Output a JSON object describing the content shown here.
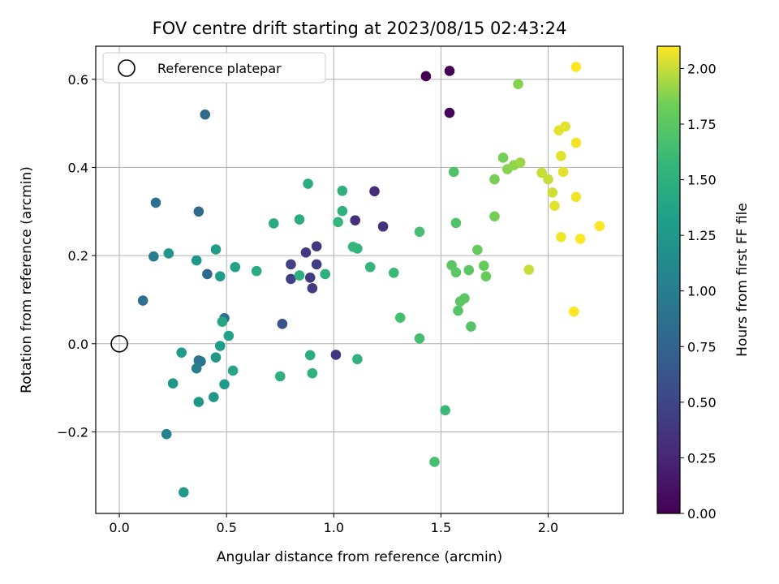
{
  "chart_data": {
    "type": "scatter",
    "title": "FOV centre drift starting at 2023/08/15 02:43:24",
    "xlabel": "Angular distance from reference (arcmin)",
    "ylabel": "Rotation from reference (arcmin)",
    "xlim": [
      -0.11,
      2.35
    ],
    "ylim": [
      -0.385,
      0.675
    ],
    "xticks": [
      0.0,
      0.5,
      1.0,
      1.5,
      2.0
    ],
    "xtick_labels": [
      "0.0",
      "0.5",
      "1.0",
      "1.5",
      "2.0"
    ],
    "yticks": [
      -0.2,
      0.0,
      0.2,
      0.4,
      0.6
    ],
    "ytick_labels": [
      "−0.2",
      "0.0",
      "0.2",
      "0.4",
      "0.6"
    ],
    "grid": true,
    "legend": {
      "placement": "top-left",
      "entries": [
        "Reference platepar"
      ]
    },
    "reference_point": {
      "x": 0.0,
      "y": 0.0
    },
    "colorbar": {
      "label": "Hours from first FF file",
      "min": 0.0,
      "max": 2.1,
      "colormap": "viridis",
      "ticks": [
        0.0,
        0.25,
        0.5,
        0.75,
        1.0,
        1.25,
        1.5,
        1.75,
        2.0
      ],
      "tick_labels": [
        "0.00",
        "0.25",
        "0.50",
        "0.75",
        "1.00",
        "1.25",
        "1.50",
        "1.75",
        "2.00"
      ]
    },
    "points": [
      {
        "x": 1.43,
        "y": 0.607,
        "c": 0.0
      },
      {
        "x": 1.54,
        "y": 0.619,
        "c": 0.0
      },
      {
        "x": 1.54,
        "y": 0.524,
        "c": 0.02
      },
      {
        "x": 1.19,
        "y": 0.346,
        "c": 0.3
      },
      {
        "x": 1.1,
        "y": 0.28,
        "c": 0.32
      },
      {
        "x": 1.23,
        "y": 0.266,
        "c": 0.34
      },
      {
        "x": 0.92,
        "y": 0.221,
        "c": 0.38
      },
      {
        "x": 0.87,
        "y": 0.207,
        "c": 0.4
      },
      {
        "x": 0.92,
        "y": 0.18,
        "c": 0.42
      },
      {
        "x": 0.8,
        "y": 0.18,
        "c": 0.45
      },
      {
        "x": 0.8,
        "y": 0.147,
        "c": 0.45
      },
      {
        "x": 0.89,
        "y": 0.15,
        "c": 0.4
      },
      {
        "x": 0.9,
        "y": 0.126,
        "c": 0.42
      },
      {
        "x": 1.01,
        "y": -0.025,
        "c": 0.38
      },
      {
        "x": 0.76,
        "y": 0.045,
        "c": 0.62
      },
      {
        "x": 0.4,
        "y": 0.52,
        "c": 0.82
      },
      {
        "x": 0.37,
        "y": 0.3,
        "c": 0.82
      },
      {
        "x": 0.17,
        "y": 0.32,
        "c": 0.85
      },
      {
        "x": 0.41,
        "y": 0.158,
        "c": 0.8
      },
      {
        "x": 0.49,
        "y": 0.058,
        "c": 0.85
      },
      {
        "x": 0.11,
        "y": 0.098,
        "c": 0.88
      },
      {
        "x": 0.16,
        "y": 0.198,
        "c": 0.98
      },
      {
        "x": 0.37,
        "y": -0.038,
        "c": 0.9
      },
      {
        "x": 0.38,
        "y": -0.04,
        "c": 0.92
      },
      {
        "x": 0.36,
        "y": -0.056,
        "c": 1.02
      },
      {
        "x": 0.22,
        "y": -0.205,
        "c": 1.05
      },
      {
        "x": 0.23,
        "y": 0.205,
        "c": 1.25
      },
      {
        "x": 0.36,
        "y": 0.189,
        "c": 1.25
      },
      {
        "x": 0.45,
        "y": 0.214,
        "c": 1.3
      },
      {
        "x": 0.47,
        "y": 0.153,
        "c": 1.3
      },
      {
        "x": 0.54,
        "y": 0.174,
        "c": 1.35
      },
      {
        "x": 0.64,
        "y": 0.165,
        "c": 1.45
      },
      {
        "x": 0.48,
        "y": 0.05,
        "c": 1.4
      },
      {
        "x": 0.51,
        "y": 0.018,
        "c": 1.35
      },
      {
        "x": 0.47,
        "y": -0.005,
        "c": 1.3
      },
      {
        "x": 0.29,
        "y": -0.02,
        "c": 1.28
      },
      {
        "x": 0.45,
        "y": -0.031,
        "c": 1.25
      },
      {
        "x": 0.53,
        "y": -0.061,
        "c": 1.4
      },
      {
        "x": 0.25,
        "y": -0.09,
        "c": 1.25
      },
      {
        "x": 0.49,
        "y": -0.092,
        "c": 1.28
      },
      {
        "x": 0.44,
        "y": -0.121,
        "c": 1.25
      },
      {
        "x": 0.37,
        "y": -0.132,
        "c": 1.25
      },
      {
        "x": 0.3,
        "y": -0.337,
        "c": 1.28
      },
      {
        "x": 0.72,
        "y": 0.273,
        "c": 1.45
      },
      {
        "x": 0.84,
        "y": 0.282,
        "c": 1.45
      },
      {
        "x": 0.88,
        "y": 0.363,
        "c": 1.45
      },
      {
        "x": 0.84,
        "y": 0.155,
        "c": 1.5
      },
      {
        "x": 0.96,
        "y": 0.158,
        "c": 1.5
      },
      {
        "x": 0.75,
        "y": -0.074,
        "c": 1.5
      },
      {
        "x": 0.89,
        "y": -0.026,
        "c": 1.45
      },
      {
        "x": 0.9,
        "y": -0.067,
        "c": 1.5
      },
      {
        "x": 1.04,
        "y": 0.347,
        "c": 1.5
      },
      {
        "x": 1.04,
        "y": 0.301,
        "c": 1.5
      },
      {
        "x": 1.02,
        "y": 0.276,
        "c": 1.55
      },
      {
        "x": 1.09,
        "y": 0.22,
        "c": 1.55
      },
      {
        "x": 1.11,
        "y": 0.216,
        "c": 1.55
      },
      {
        "x": 1.17,
        "y": 0.174,
        "c": 1.55
      },
      {
        "x": 1.28,
        "y": 0.161,
        "c": 1.6
      },
      {
        "x": 1.11,
        "y": -0.035,
        "c": 1.5
      },
      {
        "x": 1.31,
        "y": 0.059,
        "c": 1.65
      },
      {
        "x": 1.4,
        "y": 0.254,
        "c": 1.65
      },
      {
        "x": 1.4,
        "y": 0.012,
        "c": 1.65
      },
      {
        "x": 1.47,
        "y": -0.268,
        "c": 1.65
      },
      {
        "x": 1.52,
        "y": -0.151,
        "c": 1.6
      },
      {
        "x": 1.56,
        "y": 0.39,
        "c": 1.7
      },
      {
        "x": 1.57,
        "y": 0.274,
        "c": 1.7
      },
      {
        "x": 1.55,
        "y": 0.178,
        "c": 1.75
      },
      {
        "x": 1.57,
        "y": 0.162,
        "c": 1.75
      },
      {
        "x": 1.58,
        "y": 0.075,
        "c": 1.72
      },
      {
        "x": 1.59,
        "y": 0.096,
        "c": 1.75
      },
      {
        "x": 1.61,
        "y": 0.103,
        "c": 1.75
      },
      {
        "x": 1.63,
        "y": 0.167,
        "c": 1.75
      },
      {
        "x": 1.64,
        "y": 0.039,
        "c": 1.72
      },
      {
        "x": 1.67,
        "y": 0.213,
        "c": 1.8
      },
      {
        "x": 1.7,
        "y": 0.177,
        "c": 1.8
      },
      {
        "x": 1.71,
        "y": 0.153,
        "c": 1.8
      },
      {
        "x": 1.75,
        "y": 0.373,
        "c": 1.85
      },
      {
        "x": 1.75,
        "y": 0.289,
        "c": 1.85
      },
      {
        "x": 1.79,
        "y": 0.422,
        "c": 1.85
      },
      {
        "x": 1.81,
        "y": 0.396,
        "c": 1.88
      },
      {
        "x": 1.84,
        "y": 0.405,
        "c": 1.9
      },
      {
        "x": 1.87,
        "y": 0.411,
        "c": 1.92
      },
      {
        "x": 1.86,
        "y": 0.589,
        "c": 1.88
      },
      {
        "x": 1.91,
        "y": 0.168,
        "c": 2.0
      },
      {
        "x": 1.97,
        "y": 0.388,
        "c": 2.0
      },
      {
        "x": 2.0,
        "y": 0.373,
        "c": 2.0
      },
      {
        "x": 2.02,
        "y": 0.343,
        "c": 2.02
      },
      {
        "x": 2.03,
        "y": 0.313,
        "c": 2.05
      },
      {
        "x": 2.05,
        "y": 0.484,
        "c": 2.05
      },
      {
        "x": 2.08,
        "y": 0.493,
        "c": 2.05
      },
      {
        "x": 2.06,
        "y": 0.426,
        "c": 2.05
      },
      {
        "x": 2.07,
        "y": 0.39,
        "c": 2.05
      },
      {
        "x": 2.06,
        "y": 0.242,
        "c": 2.08
      },
      {
        "x": 2.13,
        "y": 0.456,
        "c": 2.08
      },
      {
        "x": 2.13,
        "y": 0.333,
        "c": 2.08
      },
      {
        "x": 2.13,
        "y": 0.628,
        "c": 2.1
      },
      {
        "x": 2.12,
        "y": 0.073,
        "c": 2.1
      },
      {
        "x": 2.15,
        "y": 0.238,
        "c": 2.1
      },
      {
        "x": 2.24,
        "y": 0.267,
        "c": 2.1
      }
    ]
  }
}
